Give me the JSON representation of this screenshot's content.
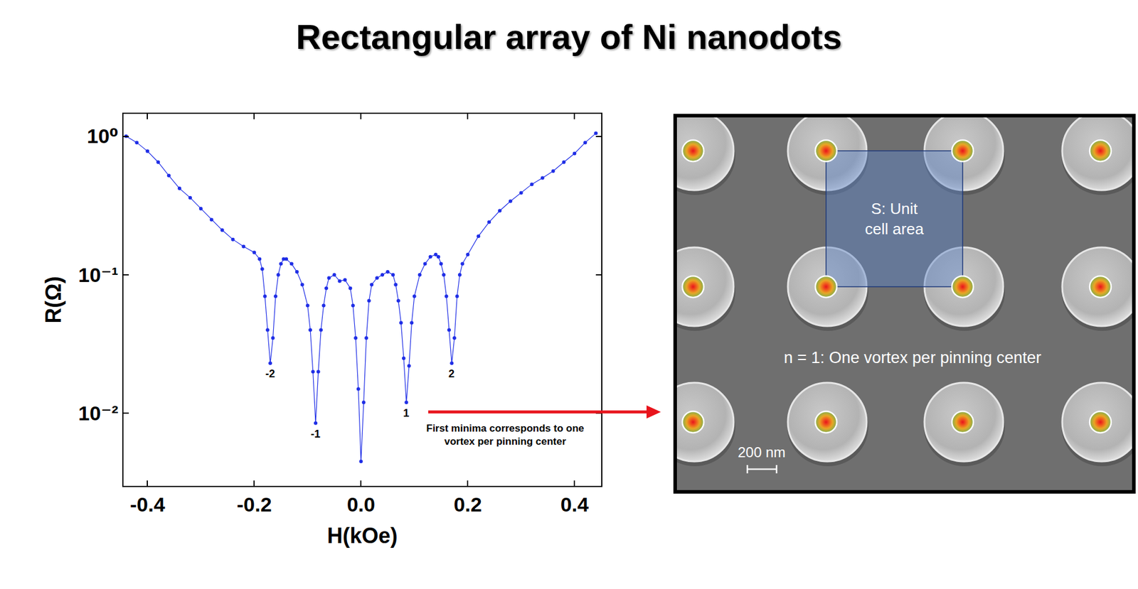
{
  "chart_data": {
    "type": "line",
    "title": "Rectangular array of Ni nanodots",
    "x_label": "H(kOe)",
    "y_label": "R(Ω)",
    "log": "y",
    "grid": false,
    "color": "#1f2ee6",
    "marker": "circle",
    "line_style": "solid",
    "xlim": [
      -0.445,
      0.45
    ],
    "ylim": [
      0.003,
      1.45
    ],
    "xticks": [
      -0.4,
      -0.2,
      {
        "value": 0,
        "label": "0.0"
      },
      0.2,
      0.4
    ],
    "yticks": [
      {
        "value": 1,
        "label": "10⁰"
      },
      {
        "value": 0.1,
        "label": "10⁻¹"
      },
      {
        "value": 0.01,
        "label": "10⁻²"
      }
    ],
    "x": [
      -0.44,
      -0.42,
      -0.4,
      -0.38,
      -0.36,
      -0.34,
      -0.32,
      -0.3,
      -0.28,
      -0.26,
      -0.24,
      -0.22,
      -0.2,
      -0.19,
      -0.185,
      -0.18,
      -0.175,
      -0.17,
      -0.165,
      -0.16,
      -0.155,
      -0.15,
      -0.145,
      -0.14,
      -0.13,
      -0.12,
      -0.11,
      -0.1,
      -0.095,
      -0.09,
      -0.085,
      -0.08,
      -0.075,
      -0.07,
      -0.065,
      -0.06,
      -0.05,
      -0.04,
      -0.03,
      -0.02,
      -0.015,
      -0.01,
      -0.005,
      0,
      0.005,
      0.01,
      0.015,
      0.02,
      0.03,
      0.04,
      0.05,
      0.06,
      0.065,
      0.07,
      0.075,
      0.08,
      0.085,
      0.09,
      0.095,
      0.1,
      0.11,
      0.12,
      0.13,
      0.14,
      0.145,
      0.15,
      0.155,
      0.16,
      0.165,
      0.17,
      0.175,
      0.18,
      0.185,
      0.19,
      0.2,
      0.22,
      0.24,
      0.26,
      0.28,
      0.3,
      0.32,
      0.34,
      0.36,
      0.38,
      0.4,
      0.42,
      0.44
    ],
    "values": [
      1.0,
      0.9,
      0.78,
      0.65,
      0.52,
      0.42,
      0.36,
      0.3,
      0.25,
      0.21,
      0.18,
      0.16,
      0.145,
      0.13,
      0.11,
      0.07,
      0.04,
      0.023,
      0.035,
      0.07,
      0.1,
      0.12,
      0.13,
      0.13,
      0.12,
      0.105,
      0.085,
      0.06,
      0.04,
      0.02,
      0.0085,
      0.02,
      0.04,
      0.06,
      0.08,
      0.095,
      0.1,
      0.09,
      0.092,
      0.08,
      0.06,
      0.035,
      0.015,
      0.0045,
      0.012,
      0.035,
      0.065,
      0.085,
      0.095,
      0.1,
      0.105,
      0.1,
      0.085,
      0.065,
      0.045,
      0.025,
      0.012,
      0.022,
      0.045,
      0.07,
      0.1,
      0.12,
      0.135,
      0.14,
      0.135,
      0.12,
      0.1,
      0.07,
      0.04,
      0.023,
      0.035,
      0.07,
      0.1,
      0.12,
      0.14,
      0.19,
      0.24,
      0.29,
      0.34,
      0.39,
      0.45,
      0.5,
      0.56,
      0.65,
      0.75,
      0.9,
      1.05
    ],
    "annotations": [
      {
        "text": "-2",
        "x": -0.17
      },
      {
        "text": "-1",
        "x": -0.085
      },
      {
        "text": "1",
        "x": 0.085
      },
      {
        "text": "2",
        "x": 0.17
      }
    ],
    "callout": "First minima corresponds to one vortex per pinning center"
  },
  "panel": {
    "unit_cell_label": "S: Unit cell area",
    "occupancy_label": "n = 1: One vortex per pinning center",
    "scale_bar": "200 nm"
  }
}
